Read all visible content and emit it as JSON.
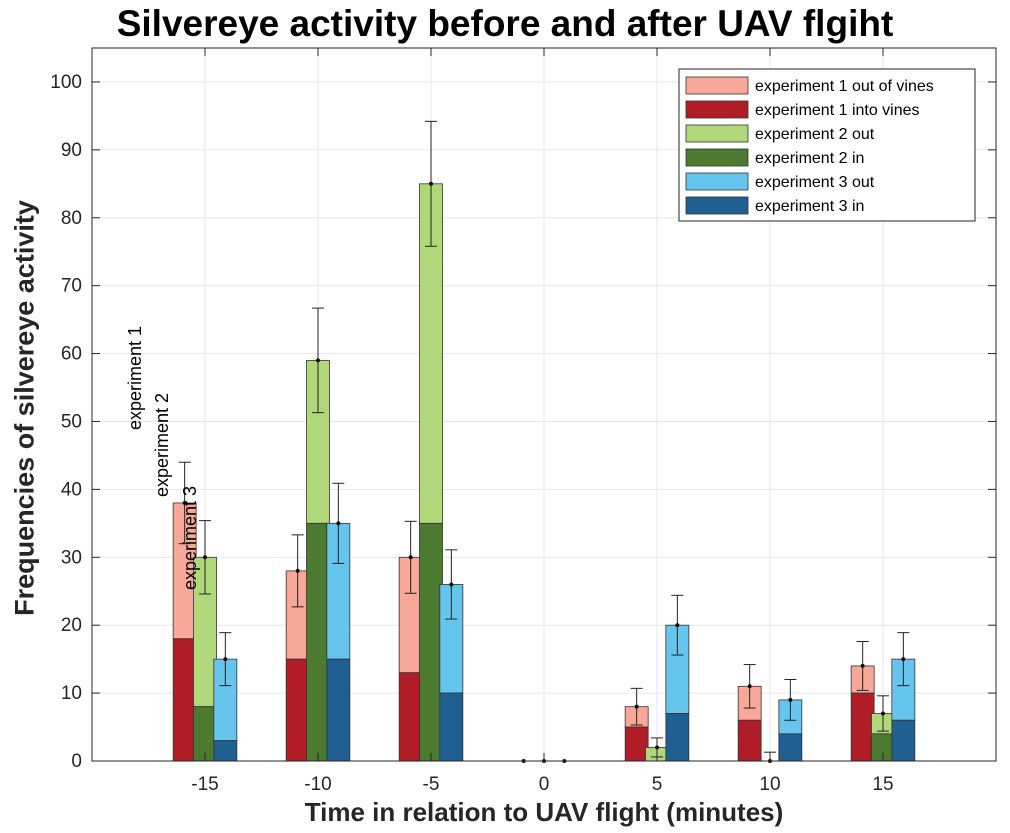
{
  "chart_data": {
    "type": "bar",
    "title": "Silvereye activity before and after UAV flgiht",
    "xlabel": "Time in relation to UAV flight (minutes)",
    "ylabel": "Frequencies of silvereye activity",
    "ylim": [
      0,
      105
    ],
    "xlim": [
      -20,
      20
    ],
    "yticks": [
      0,
      10,
      20,
      30,
      40,
      50,
      60,
      70,
      80,
      90,
      100
    ],
    "xticks": [
      -15,
      -10,
      -5,
      0,
      5,
      10,
      15
    ],
    "grid": true,
    "legend_position": "top-right",
    "experiments": [
      {
        "name": "experiment 1",
        "offset": -0.9,
        "in_color": "#b01d27",
        "out_color": "#f7a898",
        "in": [
          18,
          15,
          13,
          0,
          5,
          6,
          10
        ],
        "total": [
          38,
          28,
          30,
          0,
          8,
          11,
          14
        ],
        "error": [
          6,
          5.3,
          5.3,
          0,
          2.7,
          3.2,
          3.6
        ]
      },
      {
        "name": "experiment 2",
        "offset": 0,
        "in_color": "#4c7a30",
        "out_color": "#b0d77a",
        "in": [
          8,
          35,
          35,
          0,
          0,
          0,
          4
        ],
        "total": [
          30,
          59,
          85,
          0,
          2,
          0,
          7
        ],
        "error": [
          5.4,
          7.7,
          9.2,
          0,
          1.4,
          1.3,
          2.6
        ]
      },
      {
        "name": "experiment 3",
        "offset": 0.9,
        "in_color": "#1f5f91",
        "out_color": "#66c5ec",
        "in": [
          3,
          15,
          10,
          0,
          7,
          4,
          6
        ],
        "total": [
          15,
          35,
          26,
          0,
          20,
          9,
          15
        ],
        "error": [
          3.9,
          5.9,
          5.1,
          0,
          4.4,
          3,
          3.9
        ]
      }
    ],
    "legend": [
      {
        "label": "experiment 1 out of vines",
        "color": "#f7a898"
      },
      {
        "label": "experiment 1 into vines",
        "color": "#b01d27"
      },
      {
        "label": "experiment 2 out",
        "color": "#b0d77a"
      },
      {
        "label": "experiment 2 in",
        "color": "#4c7a30"
      },
      {
        "label": "experiment 3 out",
        "color": "#66c5ec"
      },
      {
        "label": "experiment 3 in",
        "color": "#1f5f91"
      }
    ],
    "annotations": [
      "experiment 1",
      "experiment 2",
      "experiment 3"
    ]
  }
}
